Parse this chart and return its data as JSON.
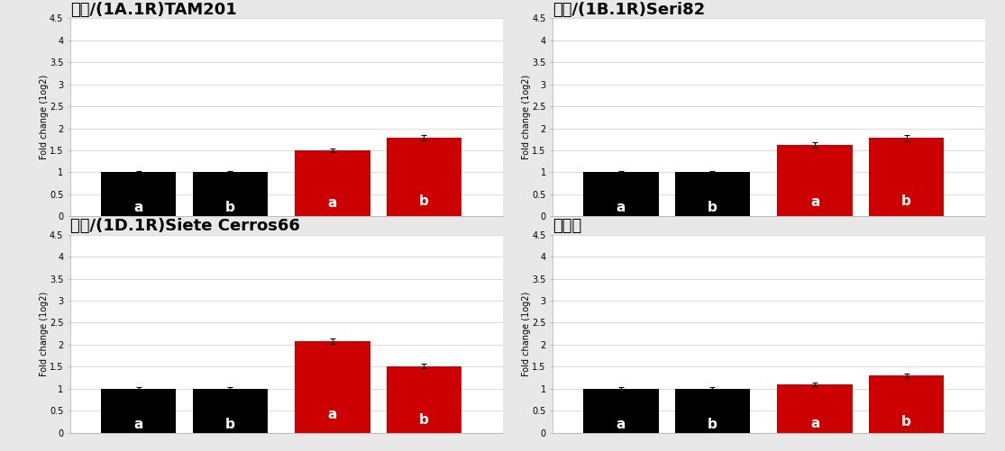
{
  "subplots": [
    {
      "title": "금강/(1A.1R)TAM201",
      "values": [
        1.0,
        1.0,
        1.5,
        1.78
      ],
      "errors": [
        0.04,
        0.04,
        0.05,
        0.06
      ],
      "colors": [
        "#000000",
        "#000000",
        "#cc0000",
        "#cc0000"
      ],
      "labels": [
        "a",
        "b",
        "a",
        "b"
      ]
    },
    {
      "title": "금강/(1B.1R)Seri82",
      "values": [
        1.0,
        1.0,
        1.62,
        1.78
      ],
      "errors": [
        0.04,
        0.04,
        0.06,
        0.07
      ],
      "colors": [
        "#000000",
        "#000000",
        "#cc0000",
        "#cc0000"
      ],
      "labels": [
        "a",
        "b",
        "a",
        "b"
      ]
    },
    {
      "title": "금강/(1D.1R)Siete Cerros66",
      "values": [
        1.0,
        1.0,
        2.08,
        1.52
      ],
      "errors": [
        0.04,
        0.04,
        0.07,
        0.05
      ],
      "colors": [
        "#000000",
        "#000000",
        "#cc0000",
        "#cc0000"
      ],
      "labels": [
        "a",
        "b",
        "a",
        "b"
      ]
    },
    {
      "title": "금강밀",
      "values": [
        1.0,
        1.0,
        1.1,
        1.3
      ],
      "errors": [
        0.04,
        0.04,
        0.04,
        0.05
      ],
      "colors": [
        "#000000",
        "#000000",
        "#cc0000",
        "#cc0000"
      ],
      "labels": [
        "a",
        "b",
        "a",
        "b"
      ]
    }
  ],
  "ylabel": "Fold change (1og2)",
  "ylim": [
    0,
    4.5
  ],
  "yticks": [
    0,
    0.5,
    1.0,
    1.5,
    2.0,
    2.5,
    3.0,
    3.5,
    4.0,
    4.5
  ],
  "ytick_labels": [
    "0",
    "0.5",
    "1",
    "1.5",
    "2",
    "2.5",
    "3",
    "3.5",
    "4",
    "4.5"
  ],
  "bar_width": 0.55,
  "background_color": "#ffffff",
  "outer_bg": "#e8e8e8",
  "grid_color": "#cccccc",
  "title_fontsize": 13,
  "ylabel_fontsize": 7,
  "ytick_fontsize": 7,
  "bar_label_fontsize": 11,
  "bar_label_color": "#ffffff"
}
